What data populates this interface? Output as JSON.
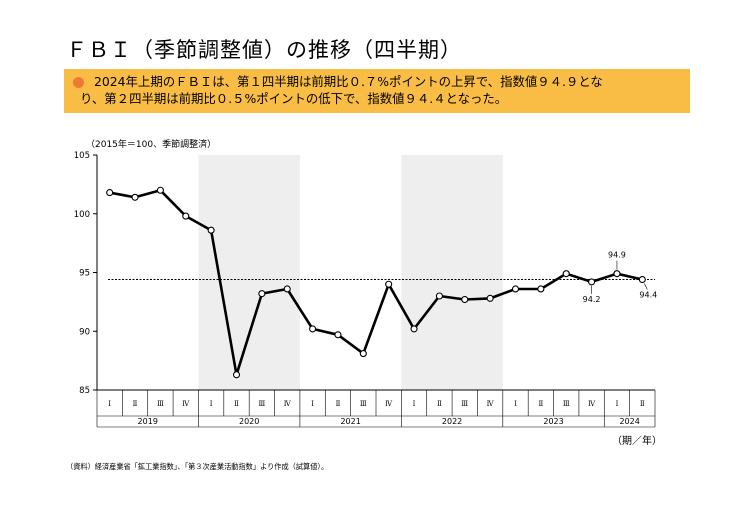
{
  "title": "ＦＢＩ（季節調整値）の推移（四半期）",
  "summary": {
    "line1": "2024年上期のＦＢＩは、第１四半期は前期比０.７%ポイントの上昇で、指数値９４.９とな",
    "line2": "り、第２四半期は前期比０.５%ポイントの低下で、指数値９４.４となった。"
  },
  "colors": {
    "box": "#f9bd45",
    "bullet": "#ec7a31",
    "shade": "#eeeeee",
    "line": "#000000"
  },
  "chart_data": {
    "type": "line",
    "unit_note": "（2015年＝100、季節調整済）",
    "period_label": "（期／年）",
    "years": [
      "2019",
      "2020",
      "2021",
      "2022",
      "2023",
      "2024"
    ],
    "quarter_labels": [
      "Ⅰ",
      "Ⅱ",
      "Ⅲ",
      "Ⅳ"
    ],
    "shaded_years": [
      "2020",
      "2022"
    ],
    "yticks": [
      85,
      90,
      95,
      100,
      105
    ],
    "ylim": [
      85,
      105
    ],
    "reference_line": 94.4,
    "series": [
      {
        "values": [
          101.8,
          101.4,
          102.0,
          99.8,
          98.6,
          86.3,
          93.2,
          93.6,
          90.2,
          89.7,
          88.1,
          94.0,
          90.2,
          93.0,
          92.7,
          92.8,
          93.6,
          93.6,
          94.9,
          94.2,
          94.9,
          94.4
        ]
      }
    ],
    "annotations": [
      {
        "index": 19,
        "label": "94.2",
        "pos": "below"
      },
      {
        "index": 20,
        "label": "94.9",
        "pos": "above"
      },
      {
        "index": 21,
        "label": "94.4",
        "pos": "below-right"
      }
    ]
  },
  "source_note": "（資料）経済産業省「鉱工業指数」、「第３次産業活動指数」より作成（試算値）。"
}
